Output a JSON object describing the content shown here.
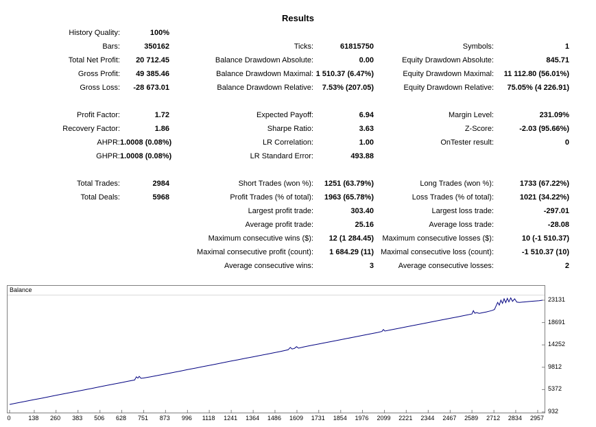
{
  "title": "Results",
  "stats": {
    "rows": [
      [
        "History Quality:",
        "100%",
        "",
        "",
        "",
        ""
      ],
      [
        "Bars:",
        "350162",
        "Ticks:",
        "61815750",
        "Symbols:",
        "1"
      ],
      [
        "Total Net Profit:",
        "20 712.45",
        "Balance Drawdown Absolute:",
        "0.00",
        "Equity Drawdown Absolute:",
        "845.71"
      ],
      [
        "Gross Profit:",
        "49 385.46",
        "Balance Drawdown Maximal:",
        "1 510.37 (6.47%)",
        "Equity Drawdown Maximal:",
        "11 112.80 (56.01%)"
      ],
      [
        "Gross Loss:",
        "-28 673.01",
        "Balance Drawdown Relative:",
        "7.53% (207.05)",
        "Equity Drawdown Relative:",
        "75.05% (4 226.91)"
      ],
      [
        "",
        "",
        "",
        "",
        "",
        ""
      ],
      [
        "Profit Factor:",
        "1.72",
        "Expected Payoff:",
        "6.94",
        "Margin Level:",
        "231.09%"
      ],
      [
        "Recovery Factor:",
        "1.86",
        "Sharpe Ratio:",
        "3.63",
        "Z-Score:",
        "-2.03 (95.66%)"
      ],
      [
        "AHPR:",
        "1.0008 (0.08%)",
        "LR Correlation:",
        "1.00",
        "OnTester result:",
        "0"
      ],
      [
        "GHPR:",
        "1.0008 (0.08%)",
        "LR Standard Error:",
        "493.88",
        "",
        ""
      ],
      [
        "",
        "",
        "",
        "",
        "",
        ""
      ],
      [
        "Total Trades:",
        "2984",
        "Short Trades (won %):",
        "1251 (63.79%)",
        "Long Trades (won %):",
        "1733 (67.22%)"
      ],
      [
        "Total Deals:",
        "5968",
        "Profit Trades (% of total):",
        "1963 (65.78%)",
        "Loss Trades (% of total):",
        "1021 (34.22%)"
      ],
      [
        "",
        "",
        "Largest profit trade:",
        "303.40",
        "Largest loss trade:",
        "-297.01"
      ],
      [
        "",
        "",
        "Average profit trade:",
        "25.16",
        "Average loss trade:",
        "-28.08"
      ],
      [
        "",
        "",
        "Maximum consecutive wins ($):",
        "12 (1 284.45)",
        "Maximum consecutive losses ($):",
        "10 (-1 510.37)"
      ],
      [
        "",
        "",
        "Maximal consecutive profit (count):",
        "1 684.29 (11)",
        "Maximal consecutive loss (count):",
        "-1 510.37 (10)"
      ],
      [
        "",
        "",
        "Average consecutive wins:",
        "3",
        "Average consecutive losses:",
        "2"
      ]
    ]
  },
  "chart_data": {
    "type": "line",
    "title": "Balance",
    "line_color": "#000080",
    "xlabel": "",
    "ylabel": "",
    "xlim": [
      0,
      2984
    ],
    "y_ticks": [
      23131,
      18691,
      14252,
      9812,
      5372,
      932
    ],
    "x_ticks": [
      0,
      138,
      260,
      383,
      506,
      628,
      751,
      873,
      996,
      1118,
      1241,
      1364,
      1486,
      1609,
      1731,
      1854,
      1976,
      2099,
      2221,
      2344,
      2467,
      2589,
      2712,
      2834,
      2957
    ],
    "series": [
      {
        "name": "Balance",
        "points": [
          [
            0,
            2419
          ],
          [
            40,
            2700
          ],
          [
            80,
            2980
          ],
          [
            138,
            3377
          ],
          [
            180,
            3660
          ],
          [
            220,
            3940
          ],
          [
            260,
            4223
          ],
          [
            300,
            4500
          ],
          [
            340,
            4790
          ],
          [
            383,
            5077
          ],
          [
            420,
            5330
          ],
          [
            460,
            5610
          ],
          [
            506,
            5931
          ],
          [
            550,
            6240
          ],
          [
            590,
            6520
          ],
          [
            628,
            6777
          ],
          [
            660,
            7000
          ],
          [
            700,
            7280
          ],
          [
            710,
            7900
          ],
          [
            718,
            7650
          ],
          [
            726,
            7990
          ],
          [
            736,
            7600
          ],
          [
            751,
            7680
          ],
          [
            790,
            7900
          ],
          [
            830,
            8180
          ],
          [
            873,
            8478
          ],
          [
            920,
            8800
          ],
          [
            960,
            9080
          ],
          [
            996,
            9331
          ],
          [
            1040,
            9640
          ],
          [
            1080,
            9920
          ],
          [
            1118,
            10178
          ],
          [
            1160,
            10470
          ],
          [
            1200,
            10750
          ],
          [
            1241,
            11031
          ],
          [
            1280,
            11300
          ],
          [
            1320,
            11580
          ],
          [
            1364,
            11885
          ],
          [
            1400,
            12130
          ],
          [
            1440,
            12410
          ],
          [
            1486,
            12731
          ],
          [
            1520,
            12970
          ],
          [
            1560,
            13290
          ],
          [
            1572,
            13750
          ],
          [
            1582,
            13430
          ],
          [
            1595,
            13560
          ],
          [
            1607,
            13900
          ],
          [
            1618,
            13600
          ],
          [
            1650,
            13870
          ],
          [
            1690,
            14150
          ],
          [
            1731,
            14431
          ],
          [
            1770,
            14700
          ],
          [
            1810,
            14980
          ],
          [
            1854,
            15285
          ],
          [
            1890,
            15530
          ],
          [
            1930,
            15810
          ],
          [
            1976,
            16132
          ],
          [
            2020,
            16440
          ],
          [
            2060,
            16720
          ],
          [
            2085,
            16920
          ],
          [
            2093,
            17300
          ],
          [
            2101,
            17000
          ],
          [
            2140,
            17270
          ],
          [
            2180,
            17550
          ],
          [
            2221,
            17832
          ],
          [
            2260,
            18100
          ],
          [
            2300,
            18380
          ],
          [
            2344,
            18686
          ],
          [
            2380,
            18930
          ],
          [
            2420,
            19210
          ],
          [
            2467,
            19539
          ],
          [
            2510,
            19840
          ],
          [
            2550,
            20120
          ],
          [
            2589,
            20390
          ],
          [
            2597,
            21050
          ],
          [
            2605,
            20550
          ],
          [
            2615,
            20680
          ],
          [
            2630,
            20520
          ],
          [
            2650,
            20660
          ],
          [
            2670,
            20800
          ],
          [
            2690,
            20980
          ],
          [
            2705,
            21130
          ],
          [
            2715,
            21290
          ],
          [
            2724,
            22000
          ],
          [
            2733,
            22700
          ],
          [
            2742,
            22150
          ],
          [
            2751,
            23150
          ],
          [
            2760,
            22500
          ],
          [
            2769,
            23420
          ],
          [
            2778,
            22650
          ],
          [
            2787,
            23500
          ],
          [
            2796,
            22800
          ],
          [
            2806,
            23600
          ],
          [
            2816,
            22900
          ],
          [
            2828,
            23400
          ],
          [
            2840,
            22750
          ],
          [
            2855,
            22700
          ],
          [
            2880,
            22780
          ],
          [
            2910,
            22870
          ],
          [
            2940,
            22960
          ],
          [
            2965,
            23040
          ],
          [
            2984,
            23131
          ]
        ]
      }
    ]
  }
}
